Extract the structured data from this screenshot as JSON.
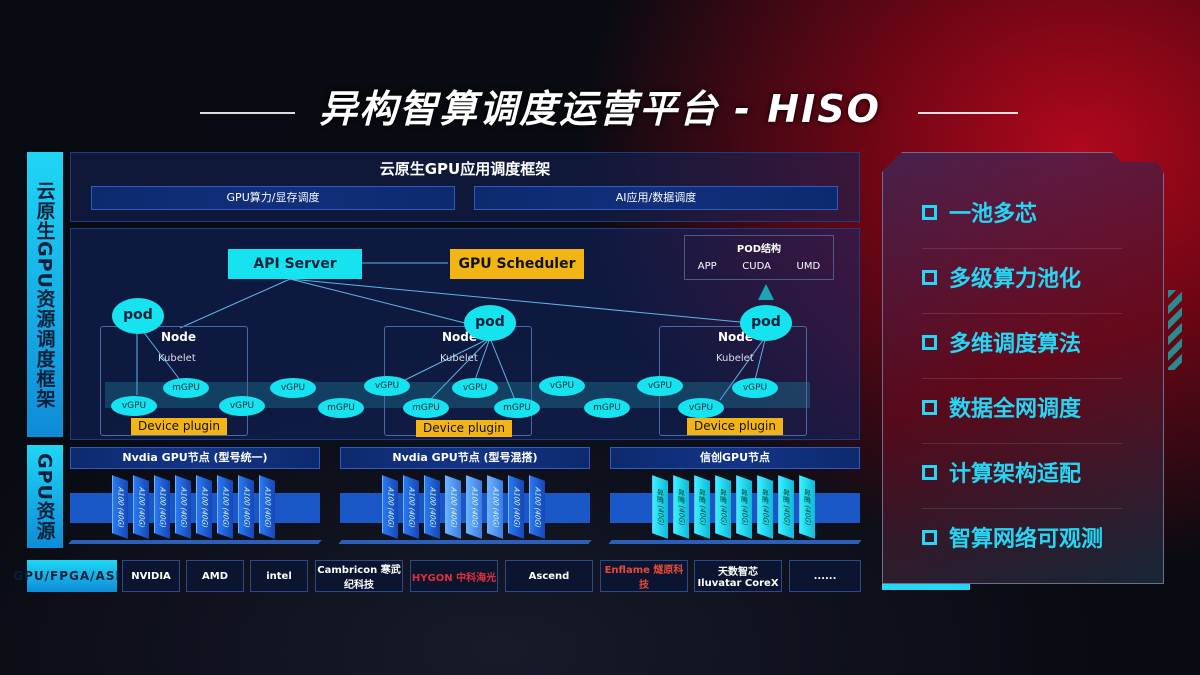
{
  "title": "异构智算调度运营平台 - HISO",
  "side_labels": {
    "top": "云原生GPU资源调度框架",
    "middle": "GPU资源",
    "bottom": "GPU/FPGA/ASIC"
  },
  "framework": {
    "title": "云原生GPU应用调度框架",
    "bars": [
      "GPU算力/显存调度",
      "AI应用/数据调度"
    ]
  },
  "api_server": "API Server",
  "gpu_scheduler": "GPU Scheduler",
  "pod_structure": {
    "title": "POD结构",
    "items": [
      "APP",
      "CUDA",
      "UMD"
    ]
  },
  "pod_label": "pod",
  "node_label": "Node",
  "kubelet_label": "Kubelet",
  "device_plugin": "Device plugin",
  "gpu_ovals": [
    "vGPU",
    "mGPU",
    "vGPU",
    "vGPU",
    "mGPU",
    "vGPU",
    "mGPU",
    "vGPU",
    "mGPU",
    "vGPU",
    "mGPU",
    "vGPU",
    "vGPU",
    "vGPU"
  ],
  "gpu_nodes": [
    {
      "title": "Nvdia GPU节点 (型号统一)",
      "cards": [
        "A100 (40G)",
        "A100 (40G)",
        "A100 (40G)",
        "A100 (40G)",
        "A100 (40G)",
        "A100 (40G)",
        "A100 (40G)",
        "A100 (40G)"
      ]
    },
    {
      "title": "Nvdia GPU节点 (型号混搭)",
      "cards": [
        "A100 (40G)",
        "A100 (40G)",
        "A100 (40G)",
        "A100 (40G)",
        "A100 (40G)",
        "A100 (40G)",
        "A100 (40G)",
        "A100 (40G)"
      ]
    },
    {
      "title": "信创GPU节点",
      "cards": [
        "昇腾 (40G)",
        "昇腾 (40G)",
        "昇腾 (40G)",
        "昇腾 (40G)",
        "昇腾 (40G)",
        "昇腾 (40G)",
        "昇腾 (40G)",
        "昇腾 (40G)"
      ]
    }
  ],
  "vendors": [
    "NVIDIA",
    "AMD",
    "intel",
    "Cambricon 寒武纪科技",
    "HYGON 中科海光",
    "Ascend",
    "Enflame 燧原科技",
    "天数智芯 Iluvatar CoreX",
    "......"
  ],
  "features": [
    "一池多芯",
    "多级算力池化",
    "多维调度算法",
    "数据全网调度",
    "计算架构适配",
    "智算网络可观测"
  ],
  "colors": {
    "cyan": "#16e3f0",
    "yellow": "#f2b514",
    "blue": "#1a58c8",
    "red": "#b0081c"
  }
}
